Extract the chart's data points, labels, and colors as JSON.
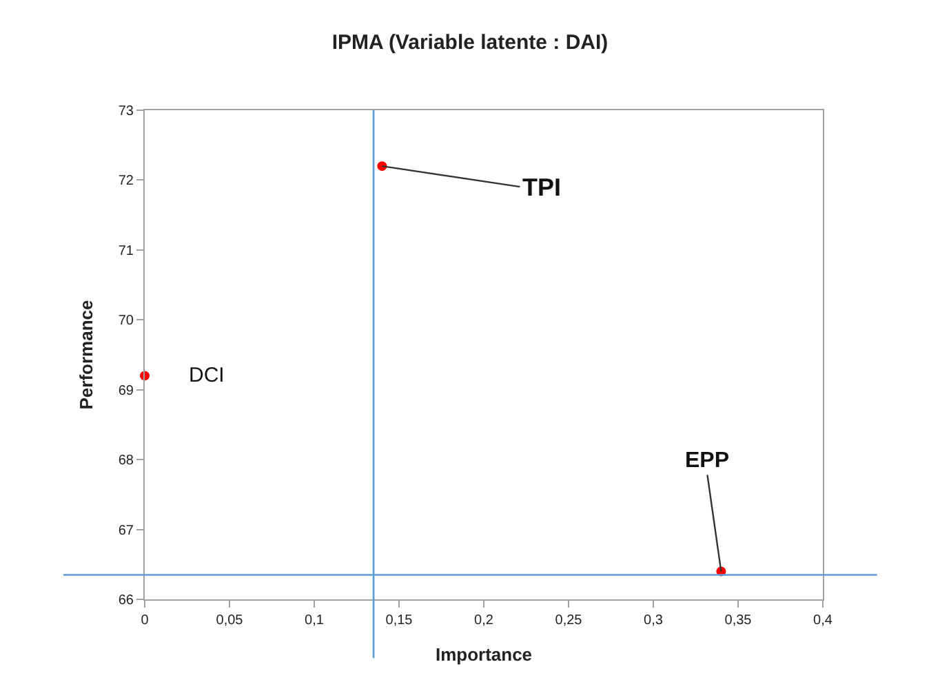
{
  "chart_data": {
    "type": "scatter",
    "title": "IPMA (Variable latente : DAI)",
    "xlabel": "Importance",
    "ylabel": "Performance",
    "x": [
      0,
      0.14,
      0.34
    ],
    "series": [
      {
        "color": "#ff0000",
        "values": [
          69.2,
          72.2,
          66.4
        ]
      }
    ],
    "marker": "circle",
    "xlim": [
      0,
      0.4
    ],
    "ylim": [
      66,
      73
    ],
    "xticks": [
      0,
      {
        "value": 0.05,
        "label": "0,05"
      },
      {
        "value": 0.1,
        "label": "0,1"
      },
      {
        "value": 0.15,
        "label": "0,15"
      },
      {
        "value": 0.2,
        "label": "0,2"
      },
      {
        "value": 0.25,
        "label": "0,25"
      },
      {
        "value": 0.3,
        "label": "0,3"
      },
      {
        "value": 0.35,
        "label": "0,35"
      },
      {
        "value": 0.4,
        "label": "0,4"
      }
    ],
    "yticks": [
      66,
      67,
      68,
      69,
      70,
      71,
      72,
      73
    ],
    "ref_lines": [
      {
        "axis": "x",
        "value": 0.135,
        "color": "#5b9bd5"
      },
      {
        "axis": "y",
        "value": 66.35,
        "color": "#5b9bd5"
      }
    ],
    "annotations": [
      {
        "text": "DCI",
        "x": 0,
        "y": 69.2
      },
      {
        "text": "TPI",
        "x": 0.14,
        "y": 72.2
      },
      {
        "text": "EPP",
        "x": 0.34,
        "y": 66.4
      }
    ]
  }
}
